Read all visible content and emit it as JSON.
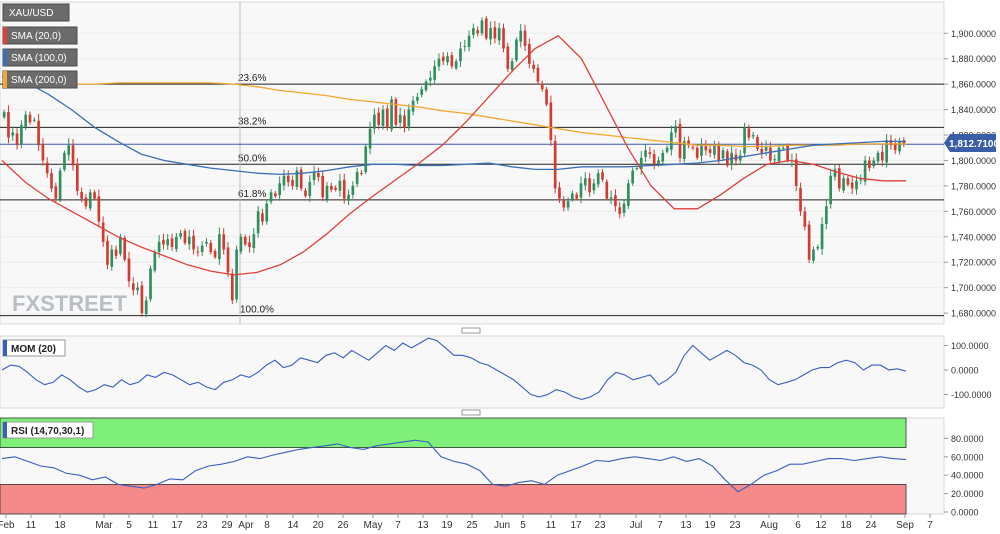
{
  "symbol": "XAU/USD",
  "indicators": [
    "SMA (20,0)",
    "SMA (100,0)",
    "SMA (200,0)"
  ],
  "indicator_colors": [
    "#e0403a",
    "#3a6fb5",
    "#f0a830"
  ],
  "watermark": "FXSTREET",
  "price_label": "1,812.7100",
  "mom_label": "MOM (20)",
  "rsi_label": "RSI (14,70,30,1)",
  "fib_levels": [
    {
      "label": "23.6%",
      "value": 1860
    },
    {
      "label": "38.2%",
      "value": 1826
    },
    {
      "label": "50.0%",
      "value": 1797
    },
    {
      "label": "61.8%",
      "value": 1769
    },
    {
      "label": "100.0%",
      "value": 1678
    }
  ],
  "price_ticks": [
    "1,900.0000",
    "1,880.0000",
    "1,860.0000",
    "1,840.0000",
    "1,820.0000",
    "1,800.0000",
    "1,780.0000",
    "1,760.0000",
    "1,740.0000",
    "1,720.0000",
    "1,700.0000",
    "1,680.0000"
  ],
  "mom_ticks": [
    "100.0000",
    "0.0000",
    "-100.0000"
  ],
  "rsi_ticks": [
    "80.0000",
    "60.0000",
    "40.0000",
    "20.0000",
    "0.0000"
  ],
  "x_ticks": [
    "Feb",
    "11",
    "18",
    "Mar",
    "5",
    "11",
    "17",
    "23",
    "29",
    "Apr",
    "8",
    "14",
    "20",
    "26",
    "May",
    "7",
    "13",
    "19",
    "25",
    "Jun",
    "5",
    "11",
    "17",
    "23",
    "Jul",
    "7",
    "13",
    "19",
    "23",
    "Aug",
    "6",
    "12",
    "18",
    "24",
    "Sep",
    "7"
  ],
  "chart_data": {
    "type": "candlestick",
    "ylim": [
      1673,
      1923
    ],
    "rsi_overbought": 70,
    "rsi_oversold": 30,
    "closes": [
      1838,
      1818,
      1822,
      1812,
      1828,
      1836,
      1830,
      1832,
      1812,
      1800,
      1790,
      1778,
      1770,
      1792,
      1806,
      1812,
      1796,
      1776,
      1770,
      1764,
      1775,
      1770,
      1752,
      1736,
      1718,
      1730,
      1725,
      1740,
      1722,
      1705,
      1698,
      1700,
      1680,
      1690,
      1715,
      1728,
      1736,
      1734,
      1738,
      1732,
      1740,
      1743,
      1735,
      1740,
      1730,
      1728,
      1733,
      1736,
      1728,
      1724,
      1742,
      1730,
      1712,
      1690,
      1730,
      1740,
      1734,
      1732,
      1742,
      1760,
      1752,
      1766,
      1775,
      1772,
      1782,
      1788,
      1783,
      1780,
      1792,
      1778,
      1772,
      1783,
      1791,
      1787,
      1771,
      1780,
      1777,
      1777,
      1784,
      1770,
      1773,
      1780,
      1791,
      1790,
      1811,
      1825,
      1836,
      1828,
      1840,
      1826,
      1848,
      1828,
      1836,
      1826,
      1840,
      1847,
      1850,
      1856,
      1862,
      1865,
      1874,
      1880,
      1878,
      1882,
      1874,
      1878,
      1888,
      1890,
      1898,
      1904,
      1900,
      1910,
      1896,
      1904,
      1896,
      1904,
      1888,
      1872,
      1878,
      1895,
      1902,
      1890,
      1876,
      1872,
      1862,
      1856,
      1844,
      1816,
      1778,
      1770,
      1763,
      1768,
      1774,
      1770,
      1782,
      1786,
      1775,
      1782,
      1790,
      1785,
      1770,
      1771,
      1764,
      1758,
      1766,
      1782,
      1792,
      1794,
      1802,
      1808,
      1805,
      1796,
      1800,
      1806,
      1810,
      1822,
      1827,
      1802,
      1815,
      1812,
      1810,
      1802,
      1812,
      1808,
      1806,
      1812,
      1800,
      1808,
      1796,
      1806,
      1800,
      1804,
      1826,
      1818,
      1820,
      1809,
      1806,
      1811,
      1800,
      1801,
      1810,
      1810,
      1800,
      1800,
      1780,
      1760,
      1748,
      1722,
      1730,
      1732,
      1750,
      1764,
      1788,
      1793,
      1778,
      1786,
      1781,
      1778,
      1784,
      1785,
      1800,
      1794,
      1800,
      1806,
      1800,
      1816,
      1812,
      1808,
      1815,
      1812.7
    ],
    "sma20": [
      1800,
      1783,
      1770,
      1760,
      1750,
      1740,
      1732,
      1725,
      1718,
      1713,
      1710,
      1712,
      1718,
      1728,
      1742,
      1758,
      1772,
      1785,
      1798,
      1812,
      1830,
      1850,
      1870,
      1888,
      1898,
      1880,
      1845,
      1810,
      1780,
      1762,
      1762,
      1773,
      1786,
      1797,
      1800,
      1797,
      1791,
      1786,
      1784,
      1784
    ],
    "sma100": [
      1866,
      1862,
      1852,
      1840,
      1826,
      1815,
      1805,
      1800,
      1797,
      1794,
      1792,
      1790,
      1789,
      1790,
      1792,
      1795,
      1797,
      1797,
      1796,
      1796,
      1797,
      1798,
      1795,
      1793,
      1793,
      1795,
      1795,
      1795,
      1796,
      1797,
      1798,
      1800,
      1803,
      1806,
      1809,
      1812,
      1813,
      1814,
      1815,
      1815
    ],
    "sma200": [
      1857,
      1858,
      1859,
      1860,
      1860,
      1861,
      1861,
      1861,
      1861,
      1861,
      1860,
      1858,
      1855,
      1853,
      1851,
      1848,
      1846,
      1844,
      1842,
      1839,
      1837,
      1834,
      1831,
      1828,
      1825,
      1822,
      1820,
      1818,
      1816,
      1814,
      1812,
      1812,
      1811,
      1811,
      1812,
      1812,
      1812,
      1813,
      1813,
      1813
    ],
    "mom": [
      0,
      20,
      15,
      -10,
      -40,
      -60,
      -50,
      -20,
      -40,
      -70,
      -90,
      -80,
      -60,
      -70,
      -40,
      -60,
      -50,
      -20,
      -30,
      -10,
      -20,
      -40,
      -60,
      -50,
      -70,
      -80,
      -50,
      -40,
      -20,
      -30,
      -10,
      20,
      40,
      10,
      20,
      50,
      40,
      30,
      60,
      70,
      50,
      80,
      60,
      40,
      70,
      100,
      80,
      110,
      90,
      110,
      130,
      120,
      90,
      60,
      60,
      50,
      30,
      20,
      0,
      -20,
      -40,
      -70,
      -100,
      -110,
      -100,
      -80,
      -90,
      -110,
      -120,
      -110,
      -90,
      -40,
      -10,
      -20,
      -40,
      -30,
      -20,
      -60,
      -40,
      -10,
      60,
      100,
      70,
      40,
      60,
      80,
      60,
      30,
      20,
      0,
      -40,
      -60,
      -50,
      -40,
      -20,
      0,
      10,
      10,
      30,
      40,
      30,
      0,
      20,
      20,
      0,
      5,
      -5
    ],
    "rsi": [
      58,
      60,
      55,
      50,
      48,
      42,
      40,
      35,
      38,
      30,
      28,
      26,
      30,
      36,
      35,
      45,
      50,
      52,
      55,
      60,
      58,
      62,
      65,
      68,
      70,
      72,
      74,
      70,
      68,
      72,
      74,
      76,
      78,
      76,
      60,
      55,
      52,
      45,
      30,
      28,
      32,
      34,
      30,
      40,
      45,
      50,
      56,
      55,
      58,
      60,
      58,
      56,
      60,
      55,
      58,
      50,
      35,
      22,
      30,
      40,
      45,
      52,
      52,
      55,
      58,
      58,
      56,
      58,
      60,
      58,
      57
    ]
  }
}
